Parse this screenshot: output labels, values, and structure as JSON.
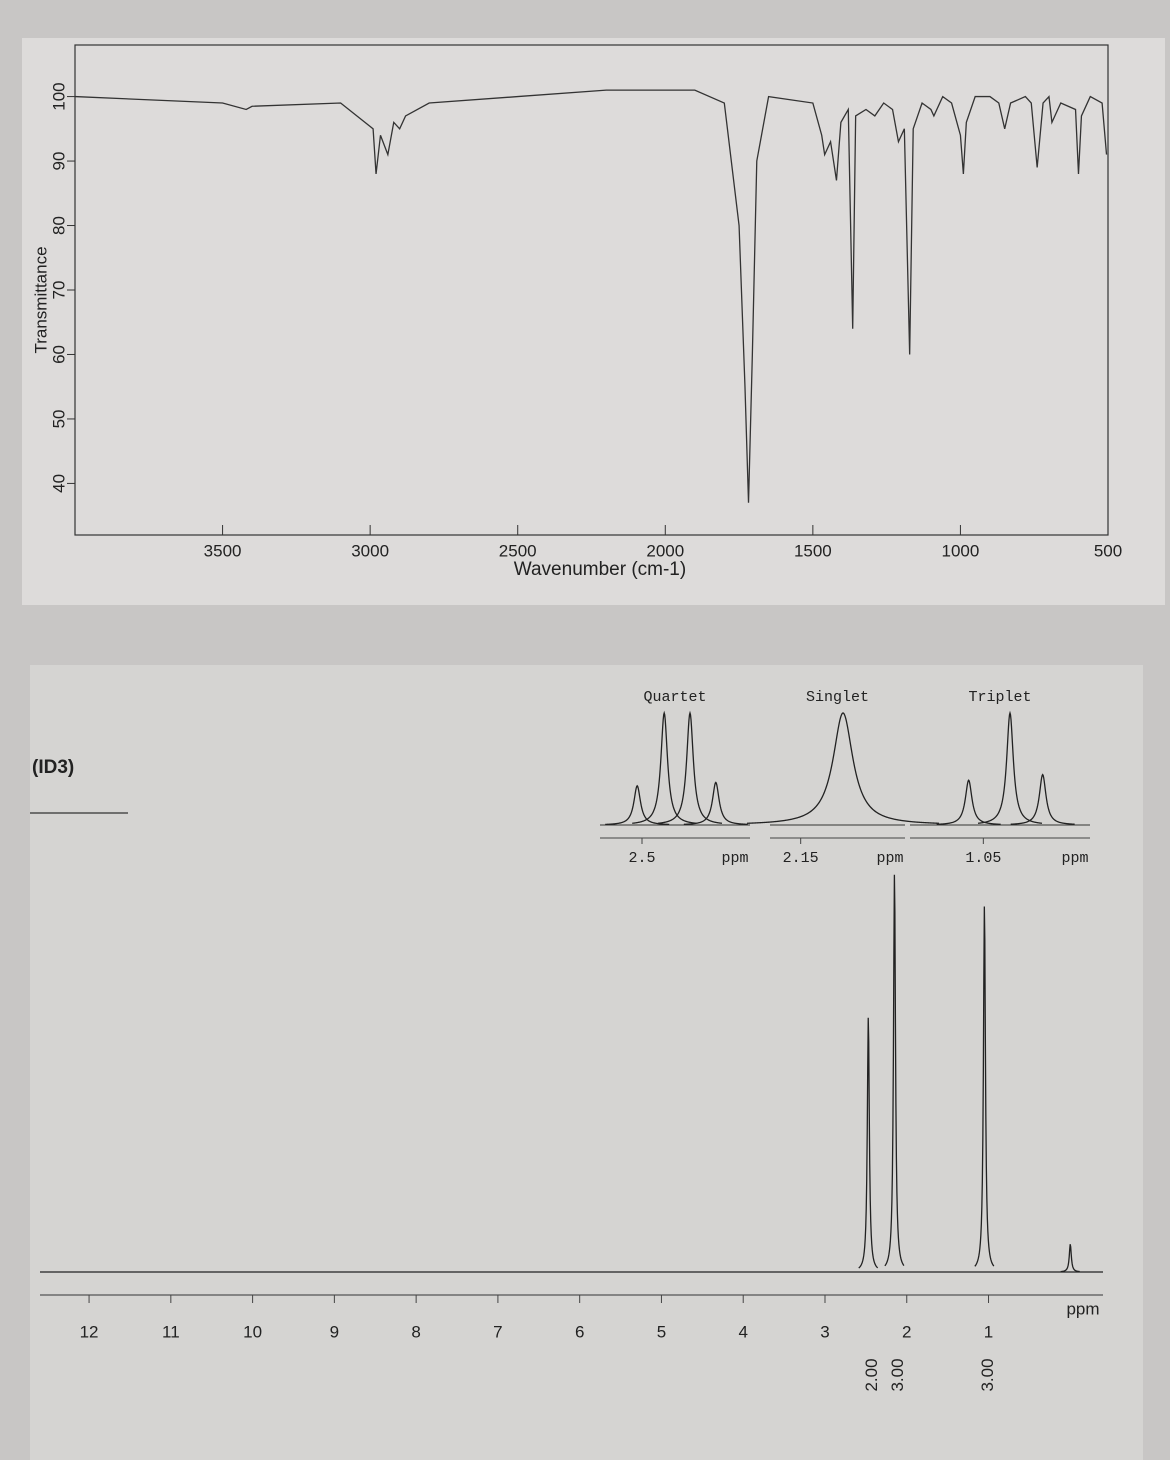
{
  "chart_data": [
    {
      "type": "line",
      "ylabel": "Transmittance",
      "xlabel": "Wavenumber (cm-1)",
      "xlim": [
        4000,
        500
      ],
      "ylim": [
        32,
        108
      ],
      "xticks": [
        3500,
        3000,
        2500,
        2000,
        1500,
        1000,
        500
      ],
      "yticks": [
        40,
        50,
        60,
        70,
        80,
        90,
        100
      ],
      "color": "#333333",
      "x": [
        4000,
        3500,
        3420,
        3400,
        3100,
        2990,
        2980,
        2965,
        2940,
        2920,
        2900,
        2880,
        2800,
        2500,
        2200,
        2100,
        1900,
        1800,
        1750,
        1730,
        1718,
        1705,
        1690,
        1650,
        1500,
        1470,
        1460,
        1440,
        1420,
        1405,
        1380,
        1365,
        1355,
        1320,
        1290,
        1260,
        1230,
        1210,
        1190,
        1172,
        1160,
        1130,
        1100,
        1090,
        1060,
        1030,
        1000,
        990,
        980,
        950,
        900,
        870,
        850,
        830,
        780,
        760,
        740,
        720,
        700,
        690,
        660,
        610,
        600,
        590,
        560,
        520,
        505
      ],
      "values": [
        100,
        99,
        98,
        98.5,
        99,
        95,
        88,
        94,
        91,
        96,
        95,
        97,
        99,
        100,
        101,
        101,
        101,
        99,
        80,
        55,
        37,
        60,
        90,
        100,
        99,
        94,
        91,
        93,
        87,
        96,
        98,
        64,
        97,
        98,
        97,
        99,
        98,
        93,
        95,
        60,
        95,
        99,
        98,
        97,
        100,
        99,
        94,
        88,
        96,
        100,
        100,
        99,
        95,
        99,
        100,
        99,
        89,
        99,
        100,
        96,
        99,
        98,
        88,
        97,
        100,
        99,
        91
      ]
    },
    {
      "type": "spectrum",
      "label": "(ID3)",
      "xlabel": "ppm",
      "xlim": [
        12.6,
        -0.4
      ],
      "ylim": [
        0,
        100
      ],
      "xticks": [
        12,
        11,
        10,
        9,
        8,
        7,
        6,
        5,
        4,
        3,
        2,
        1
      ],
      "color": "#222222",
      "x": [
        2.47,
        2.15,
        1.05,
        0
      ],
      "values": [
        64,
        100,
        92,
        7
      ],
      "integrals": [
        {
          "value": 2,
          "label": "2.00"
        },
        {
          "value": 3,
          "label": "3.00"
        },
        {
          "value": 3,
          "label": "3.00"
        },
        null
      ],
      "insets": [
        {
          "title": "Quartet",
          "xlabel": "ppm",
          "xlim": [
            2.57,
            2.32
          ],
          "xticks": [
            {
              "value": 2.5,
              "label": "2.5"
            }
          ],
          "x": [
            2.508,
            2.463,
            2.42,
            2.377
          ],
          "values": [
            35,
            100,
            100,
            38
          ]
        },
        {
          "title": "Singlet",
          "xlabel": "ppm",
          "xlim": [
            2.2,
            1.98
          ],
          "xticks": [
            2.15
          ],
          "x": [
            2.081
          ],
          "values": [
            100
          ]
        },
        {
          "title": "Triplet",
          "xlabel": "ppm",
          "xlim": [
            1.16,
            0.89
          ],
          "xticks": [
            1.05
          ],
          "x": [
            1.072,
            1.01,
            0.961
          ],
          "values": [
            40,
            100,
            45
          ]
        }
      ]
    }
  ]
}
